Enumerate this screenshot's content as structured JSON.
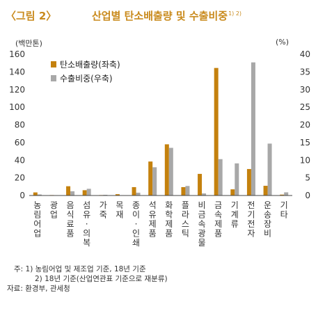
{
  "figure": {
    "number": "〈그림 2〉",
    "title": "산업별 탄소배출량 및 수출비중",
    "title_sup": "1) 2)"
  },
  "chart_data": {
    "type": "bar",
    "left_unit": "(백만톤)",
    "right_unit": "(%)",
    "ylim_left": [
      0,
      160
    ],
    "ylim_right": [
      0,
      40
    ],
    "yticks_left": [
      0,
      20,
      40,
      60,
      80,
      100,
      120,
      140,
      160
    ],
    "yticks_right": [
      0,
      5,
      10,
      15,
      20,
      25,
      30,
      35,
      40
    ],
    "legend_position": "top-left",
    "categories": [
      "농림어업",
      "광업",
      "음식료품",
      "섬유·의복",
      "가죽",
      "목재",
      "종이·인쇄",
      "석유제품",
      "화학제품",
      "플라스틱",
      "비금속광물",
      "금속제품",
      "기계류",
      "전기전자",
      "운송장비",
      "기타"
    ],
    "series": [
      {
        "name": "탄소배출량(좌축)",
        "axis": "left",
        "color": "#c4810e",
        "values": [
          3.5,
          0.5,
          10.5,
          6,
          0.5,
          1.5,
          9.5,
          38.5,
          58,
          9.5,
          24.5,
          144.5,
          7,
          30,
          11,
          1
        ]
      },
      {
        "name": "수출비중(우축)",
        "axis": "right",
        "color": "#a8a8a8",
        "values": [
          0.3,
          0.1,
          1.2,
          1.9,
          0.2,
          0.1,
          0.8,
          8,
          13.5,
          2.7,
          0.6,
          10.3,
          9.1,
          37.7,
          14.7,
          0.9
        ]
      }
    ]
  },
  "notes": {
    "note1": "주: 1) 농림어업 및 제조업 기준, 18년 기준",
    "note2": "2) 18년 기준(산업연관표 기준으로 재분류)",
    "source": "자료: 환경부, 관세청"
  }
}
